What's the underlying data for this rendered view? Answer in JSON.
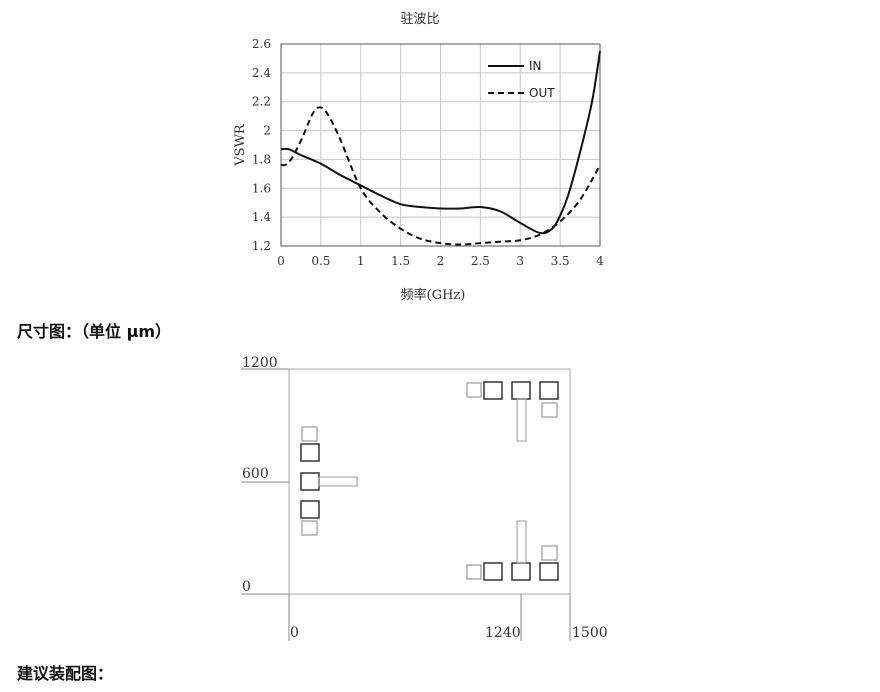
{
  "chart_data": [
    {
      "type": "line",
      "title": "驻波比",
      "xlabel": "频率(GHz)",
      "ylabel": "VSWR",
      "xlim": [
        0,
        4
      ],
      "ylim": [
        1.2,
        2.6
      ],
      "xticks": [
        "0",
        "0.5",
        "1",
        "1.5",
        "2",
        "2.5",
        "3",
        "3.5",
        "4"
      ],
      "yticks": [
        "1.2",
        "1.4",
        "1.6",
        "1.8",
        "2",
        "2.2",
        "2.4",
        "2.6"
      ],
      "grid": true,
      "legend": "top-right",
      "series": [
        {
          "name": "IN",
          "style": "solid",
          "x": [
            0,
            0.1,
            0.25,
            0.5,
            0.75,
            1.0,
            1.25,
            1.5,
            1.75,
            2.0,
            2.25,
            2.5,
            2.75,
            3.0,
            3.25,
            3.4,
            3.5,
            3.6,
            3.75,
            3.9,
            4.0
          ],
          "y": [
            1.87,
            1.87,
            1.83,
            1.77,
            1.69,
            1.62,
            1.55,
            1.49,
            1.47,
            1.46,
            1.46,
            1.47,
            1.44,
            1.36,
            1.29,
            1.32,
            1.41,
            1.55,
            1.85,
            2.2,
            2.55
          ]
        },
        {
          "name": "OUT",
          "style": "dashed",
          "x": [
            0,
            0.1,
            0.25,
            0.4,
            0.5,
            0.6,
            0.75,
            1.0,
            1.25,
            1.5,
            1.75,
            2.0,
            2.25,
            2.5,
            2.75,
            3.0,
            3.25,
            3.5,
            3.75,
            4.0
          ],
          "y": [
            1.76,
            1.78,
            1.93,
            2.12,
            2.16,
            2.1,
            1.93,
            1.6,
            1.43,
            1.32,
            1.25,
            1.22,
            1.21,
            1.22,
            1.23,
            1.24,
            1.28,
            1.37,
            1.52,
            1.76
          ]
        }
      ]
    },
    {
      "type": "diagram",
      "title": "尺寸图：（单位 μm）",
      "x_range": [
        0,
        1500
      ],
      "y_range": [
        0,
        1200
      ],
      "xticks": [
        "0",
        "1240",
        "1500"
      ],
      "yticks": [
        "0",
        "600",
        "1200"
      ]
    }
  ],
  "headings": {
    "dimension": "尺寸图：（单位 μm）",
    "assembly": "建议装配图："
  }
}
